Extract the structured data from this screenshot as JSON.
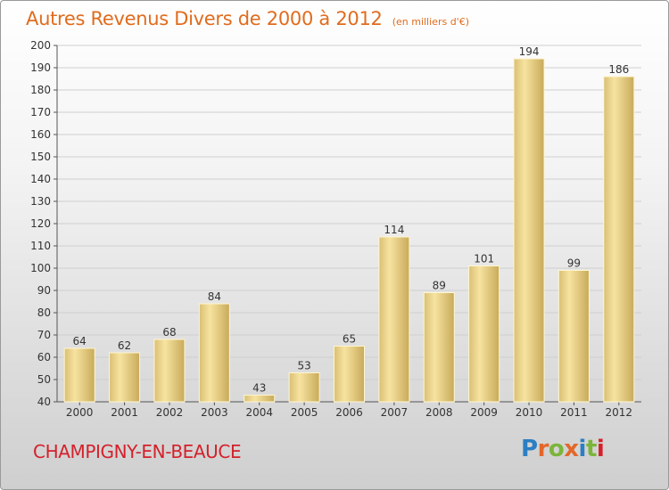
{
  "header": {
    "title": "Autres Revenus Divers de 2000 à 2012",
    "subtitle": "(en milliers d'€)"
  },
  "footer": {
    "city": "CHAMPIGNY-EN-BEAUCE",
    "logo_letters": [
      "P",
      "r",
      "o",
      "x",
      "i",
      "t",
      "i"
    ]
  },
  "colors": {
    "title": "#e06c1e",
    "city": "#d4212b",
    "bar_light": "#f7e3a0",
    "bar_dark": "#c8aa5a"
  },
  "chart_data": {
    "type": "bar",
    "title": "Autres Revenus Divers de 2000 à 2012",
    "subtitle": "(en milliers d'€)",
    "categories": [
      "2000",
      "2001",
      "2002",
      "2003",
      "2004",
      "2005",
      "2006",
      "2007",
      "2008",
      "2009",
      "2010",
      "2011",
      "2012"
    ],
    "values": [
      64,
      62,
      68,
      84,
      43,
      53,
      65,
      114,
      89,
      101,
      194,
      99,
      186
    ],
    "data_labels": [
      "64",
      "62",
      "68",
      "84",
      "43",
      "53",
      "65",
      "114",
      "89",
      "101",
      "194",
      "99",
      "186"
    ],
    "ylim": [
      40,
      200
    ],
    "yticks": [
      "40",
      "50",
      "60",
      "70",
      "80",
      "90",
      "100",
      "110",
      "120",
      "130",
      "140",
      "150",
      "160",
      "170",
      "180",
      "190",
      "200"
    ],
    "grid": true,
    "legend": "none"
  }
}
